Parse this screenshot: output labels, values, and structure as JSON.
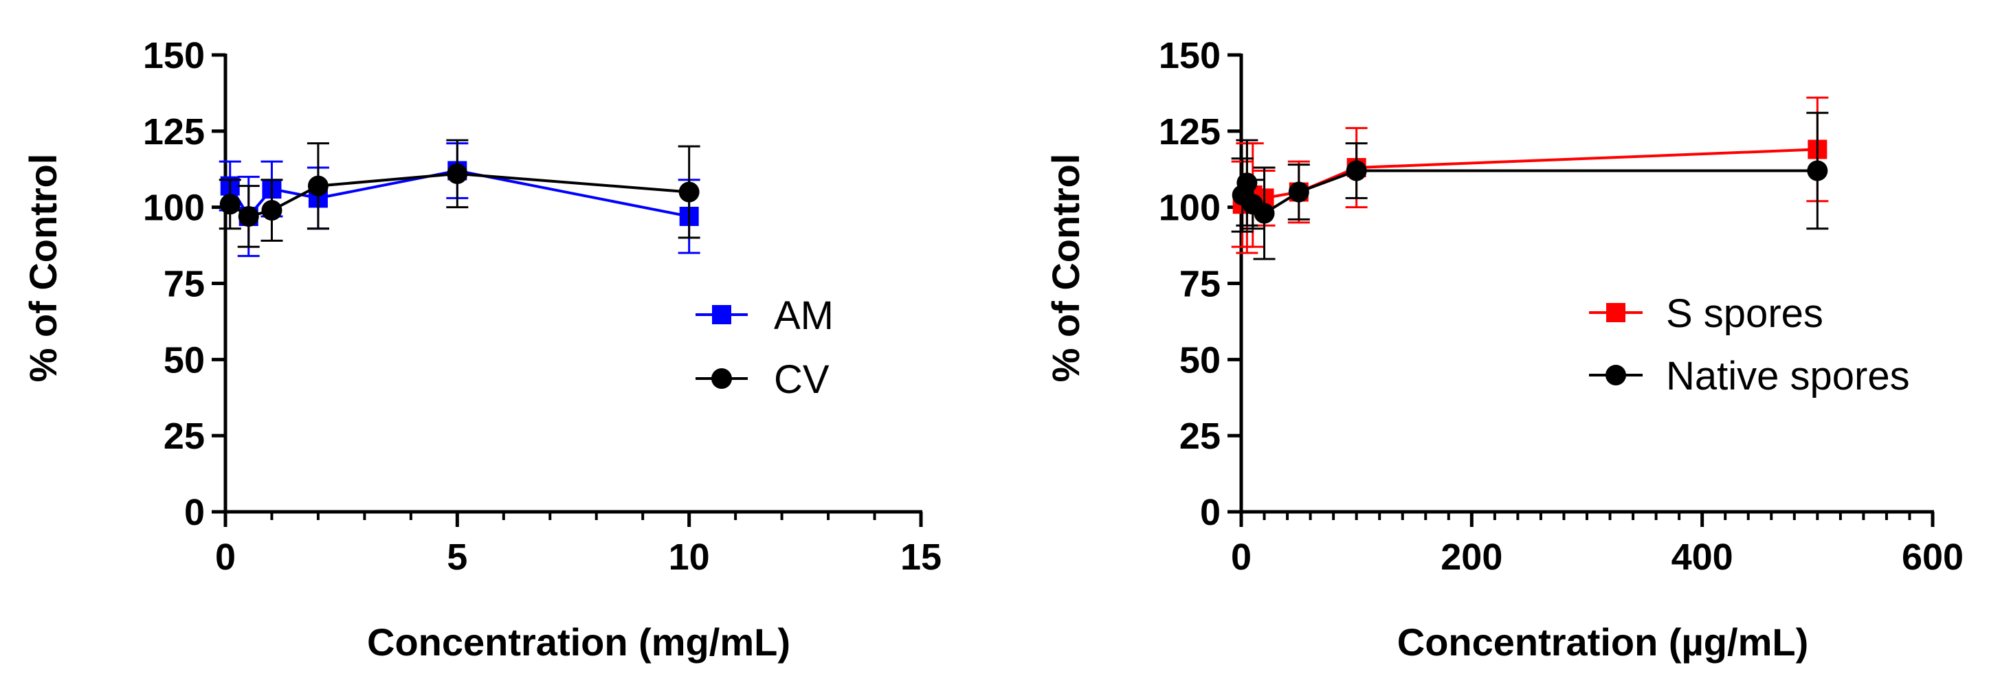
{
  "chart_data": [
    {
      "type": "line",
      "xlabel": "Concentration (mg/mL)",
      "ylabel": "% of Control",
      "xlim": [
        0,
        15
      ],
      "ylim": [
        0,
        150
      ],
      "x_ticks": [
        0,
        5,
        10,
        15
      ],
      "y_ticks": [
        0,
        25,
        50,
        75,
        100,
        125,
        150
      ],
      "x_minor_step": 1,
      "legend_position": "right-middle",
      "series": [
        {
          "name": "AM",
          "color": "#0000ff",
          "marker": "square",
          "x": [
            0.1,
            0.5,
            1,
            2,
            5,
            10
          ],
          "y": [
            107,
            97,
            106,
            103,
            112,
            97
          ],
          "error": [
            8,
            13,
            9,
            10,
            9,
            12
          ]
        },
        {
          "name": "CV",
          "color": "#000000",
          "marker": "circle",
          "x": [
            0.1,
            0.5,
            1,
            2,
            5,
            10
          ],
          "y": [
            101,
            97,
            99,
            107,
            111,
            105
          ],
          "error": [
            8,
            10,
            10,
            14,
            11,
            15
          ]
        }
      ]
    },
    {
      "type": "line",
      "xlabel": "Concentration (µg/mL)",
      "ylabel": "% of Control",
      "xlim": [
        0,
        600
      ],
      "ylim": [
        0,
        150
      ],
      "x_ticks": [
        0,
        200,
        400,
        600
      ],
      "y_ticks": [
        0,
        25,
        50,
        75,
        100,
        125,
        150
      ],
      "x_minor_step": 20,
      "legend_position": "right-middle",
      "series": [
        {
          "name": "S spores",
          "color": "#ff0000",
          "marker": "square",
          "x": [
            1,
            5,
            10,
            20,
            50,
            100,
            500
          ],
          "y": [
            101,
            103,
            104,
            103,
            105,
            113,
            119
          ],
          "error": [
            14,
            18,
            17,
            9,
            10,
            13,
            17
          ]
        },
        {
          "name": "Native spores",
          "color": "#000000",
          "marker": "circle",
          "x": [
            1,
            5,
            10,
            20,
            50,
            100,
            500
          ],
          "y": [
            104,
            108,
            101,
            98,
            105,
            112,
            112
          ],
          "error": [
            12,
            14,
            8,
            15,
            9,
            9,
            19
          ]
        }
      ]
    }
  ]
}
